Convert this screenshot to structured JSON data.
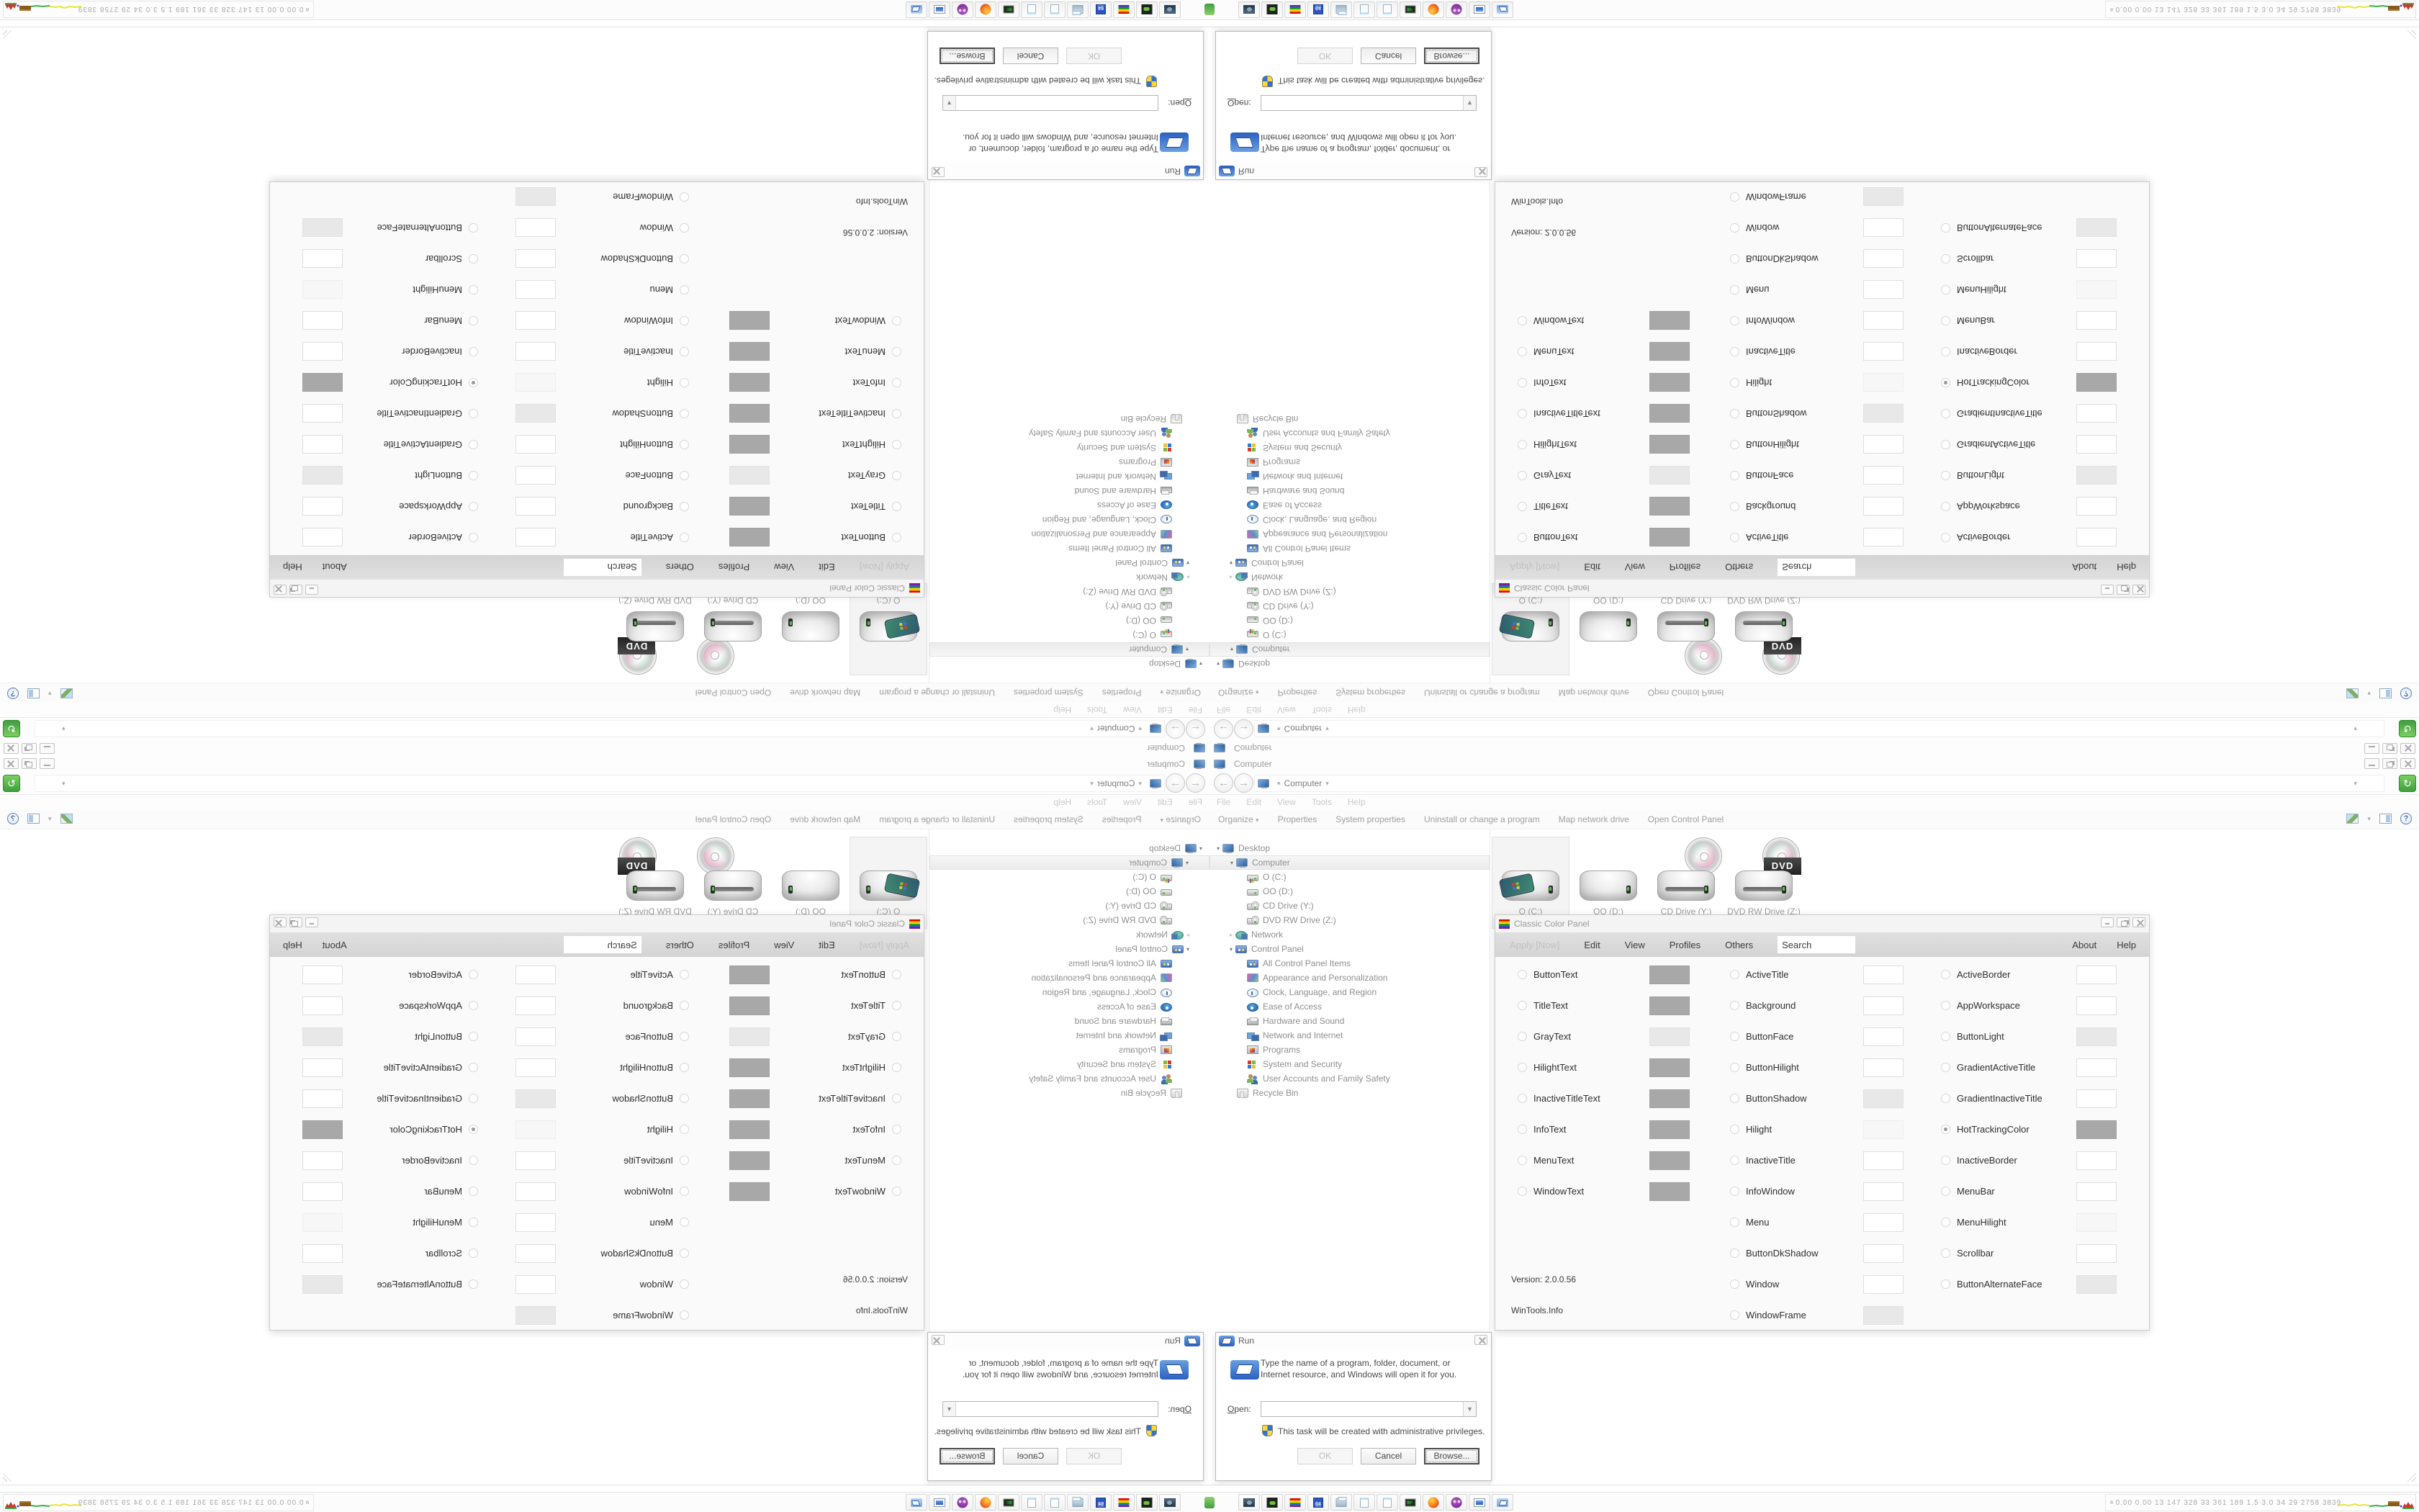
{
  "meta": {
    "description": "Windows 7 desktop screenshot (1680x1050) mirrored into four quadrants (horizontal + vertical reflection)",
    "colors": {
      "chrome_bg": "#fdfdfd",
      "chrome_text": "#9a9a9a",
      "menu_disabled_text": "#c9c9c9",
      "swatch_gray": "#a8a8a8",
      "swatch_light_gray": "#e8e8e8",
      "swatch_near_white": "#f7f7f7",
      "swatch_white": "#ffffff",
      "refresh_button_green": "#3f9e3f",
      "selection_bg": "#f4f4f4",
      "taskbar_bg": "#fcfcfc",
      "panel_menu_band": "#d9d9d9",
      "run_icon_blue": "#2c5fc0",
      "tray_text": "#a8a8a8"
    }
  },
  "explorer": {
    "title": "Computer",
    "window_buttons": [
      "minimize",
      "restore",
      "close"
    ],
    "nav": {
      "back_glyph": "←",
      "forward_glyph": "→",
      "breadcrumb_icon": "computer-icon",
      "breadcrumb": "Computer",
      "caret_glyph": "▾",
      "refresh_glyph": "↻"
    },
    "menu": {
      "items": [
        "File",
        "Edit",
        "View",
        "Tools",
        "Help"
      ]
    },
    "toolbar": {
      "items": [
        "Organize",
        "Properties",
        "System properties",
        "Uninstall or change a program",
        "Map network drive",
        "Open Control Panel"
      ],
      "right_icons": [
        "views-icon",
        "views-caret",
        "preview-pane-icon",
        "help-icon"
      ],
      "help_glyph": "?"
    },
    "tree": [
      {
        "label": "Desktop",
        "icon": "desktop-icon",
        "indent": 0,
        "expander": "expanded"
      },
      {
        "label": "Computer",
        "icon": "computer-icon",
        "indent": 1,
        "expander": "expanded",
        "selected": true
      },
      {
        "label": "O (C:)",
        "icon": "os-drive-icon",
        "indent": 2
      },
      {
        "label": "OO (D:)",
        "icon": "drive-icon",
        "indent": 2
      },
      {
        "label": "CD Drive (Y:)",
        "icon": "cd-drive-icon",
        "indent": 2
      },
      {
        "label": "DVD RW Drive (Z:)",
        "icon": "cd-drive-icon",
        "indent": 2
      },
      {
        "label": "Network",
        "icon": "network-icon",
        "indent": 1,
        "expander": "collapsed"
      },
      {
        "label": "Control Panel",
        "icon": "control-panel-icon",
        "indent": 1,
        "expander": "expanded"
      },
      {
        "label": "All Control Panel Items",
        "icon": "control-panel-icon",
        "indent": 2
      },
      {
        "label": "Appearance and Personalization",
        "icon": "appearance-icon",
        "indent": 2
      },
      {
        "label": "Clock, Language, and Region",
        "icon": "clock-icon",
        "indent": 2
      },
      {
        "label": "Ease of Access",
        "icon": "ease-of-access-icon",
        "indent": 2
      },
      {
        "label": "Hardware and Sound",
        "icon": "hardware-icon",
        "indent": 2
      },
      {
        "label": "Network and Internet",
        "icon": "network-internet-icon",
        "indent": 2
      },
      {
        "label": "Programs",
        "icon": "programs-icon",
        "indent": 2
      },
      {
        "label": "System and Security",
        "icon": "system-security-icon",
        "indent": 2
      },
      {
        "label": "User Accounts and Family Safety",
        "icon": "users-icon",
        "indent": 2
      },
      {
        "label": "Recycle Bin",
        "icon": "recycle-bin-icon",
        "indent": 1
      }
    ],
    "drives": [
      {
        "label": "O (C:)",
        "type": "os-hard-drive",
        "selected": true
      },
      {
        "label": "OO (D:)",
        "type": "hard-drive",
        "selected": false
      },
      {
        "label": "CD Drive (Y:)",
        "type": "cd-drive",
        "selected": false
      },
      {
        "label": "DVD RW Drive (Z:)",
        "type": "dvd-rw-drive",
        "selected": false
      }
    ]
  },
  "color_panel": {
    "title": "Classic Color Panel",
    "window_buttons": [
      "minimize",
      "maximize",
      "close"
    ],
    "menu": {
      "apply_label": "Apply [Now]",
      "items": [
        "Edit",
        "View",
        "Profiles",
        "Others"
      ],
      "search_value": "Search",
      "right_items": [
        "About",
        "Help"
      ]
    },
    "col1": [
      {
        "label": "ButtonText",
        "swatch": "gray"
      },
      {
        "label": "TitleText",
        "swatch": "gray"
      },
      {
        "label": "GrayText",
        "swatch": "light"
      },
      {
        "label": "HilightText",
        "swatch": "gray"
      },
      {
        "label": "InactiveTitleText",
        "swatch": "gray"
      },
      {
        "label": "InfoText",
        "swatch": "gray"
      },
      {
        "label": "MenuText",
        "swatch": "gray"
      },
      {
        "label": "WindowText",
        "swatch": "gray"
      }
    ],
    "col2": [
      {
        "label": "ActiveTitle",
        "swatch": "white"
      },
      {
        "label": "Background",
        "swatch": "white"
      },
      {
        "label": "ButtonFace",
        "swatch": "white"
      },
      {
        "label": "ButtonHilight",
        "swatch": "white"
      },
      {
        "label": "ButtonShadow",
        "swatch": "light"
      },
      {
        "label": "Hilight",
        "swatch": "xlight"
      },
      {
        "label": "InactiveTitle",
        "swatch": "white"
      },
      {
        "label": "InfoWindow",
        "swatch": "white"
      },
      {
        "label": "Menu",
        "swatch": "white"
      },
      {
        "label": "ButtonDkShadow",
        "swatch": "white"
      },
      {
        "label": "Window",
        "swatch": "white"
      },
      {
        "label": "WindowFrame",
        "swatch": "light"
      }
    ],
    "col3": [
      {
        "label": "ActiveBorder",
        "swatch": "white"
      },
      {
        "label": "AppWorkspace",
        "swatch": "white"
      },
      {
        "label": "ButtonLight",
        "swatch": "light"
      },
      {
        "label": "GradientActiveTitle",
        "swatch": "white"
      },
      {
        "label": "GradientInactiveTitle",
        "swatch": "white"
      },
      {
        "label": "HotTrackingColor",
        "swatch": "gray",
        "selected": true
      },
      {
        "label": "InactiveBorder",
        "swatch": "white"
      },
      {
        "label": "MenuBar",
        "swatch": "white"
      },
      {
        "label": "MenuHilight",
        "swatch": "xlight"
      },
      {
        "label": "Scrollbar",
        "swatch": "white"
      },
      {
        "label": "ButtonAlternateFace",
        "swatch": "light"
      }
    ],
    "footer": {
      "version": "Version: 2.0.0.56",
      "site": "WinTools.Info"
    }
  },
  "run_dialog": {
    "title": "Run",
    "message": "Type the name of a program, folder, document, or Internet resource, and Windows will open it for you.",
    "open_label": "Open:",
    "open_value": "",
    "admin_note": "This task will be created with administrative privileges.",
    "buttons": {
      "ok": "OK",
      "cancel": "Cancel",
      "browse": "Browse..."
    }
  },
  "taskbar": {
    "quick_launch_icons": [
      {
        "name": "pc-gear-icon"
      },
      {
        "name": "disc-burner-icon"
      },
      {
        "name": "classic-color-panel-icon"
      },
      {
        "name": "floppy-64-icon"
      },
      {
        "name": "printer-docs-icon"
      },
      {
        "name": "notepad-icon"
      },
      {
        "name": "notepad-icon-2"
      },
      {
        "name": "console-icon"
      },
      {
        "name": "firefox-icon"
      },
      {
        "name": "purple-owl-icon"
      },
      {
        "name": "pc-monitor-icon"
      },
      {
        "name": "run-icon"
      }
    ],
    "tray": {
      "chevron_glyph": "»",
      "numbers": "0.00 0.00   13   147 328   33   361 189   1.5   3.0   34   29  2758 3839",
      "graph": "hardware-monitor-sparklines"
    }
  }
}
